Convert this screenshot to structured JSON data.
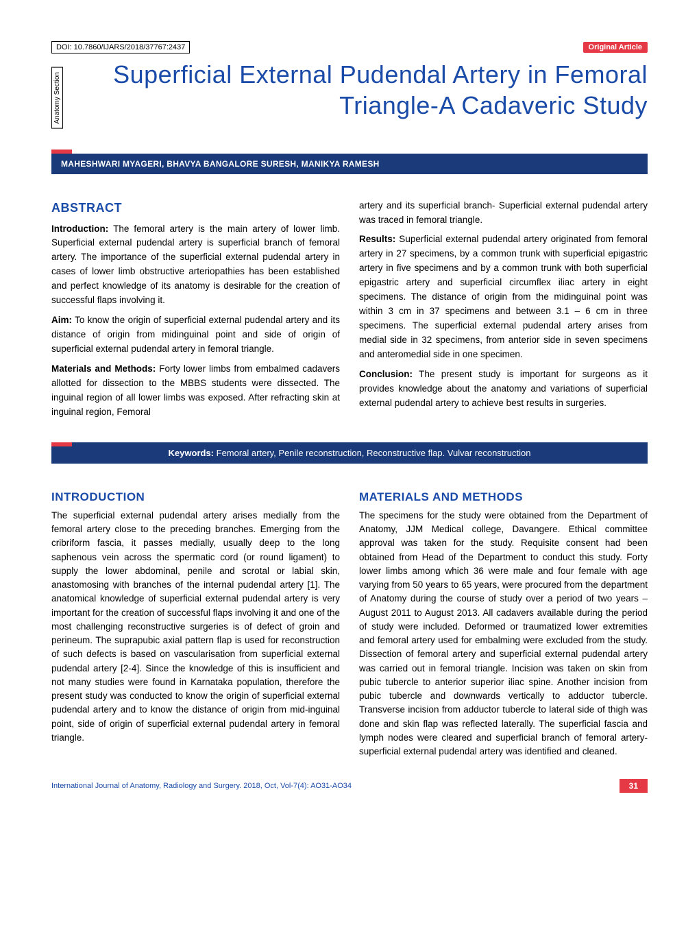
{
  "doi": "DOI: 10.7860/IJARS/2018/37767:2437",
  "badge": "Original Article",
  "section_tab": "Anatomy Section",
  "title": "Superficial External Pudendal Artery in Femoral Triangle-A Cadaveric Study",
  "authors": "MAHESHWARI MYAGERI, BHAVYA BANGALORE SURESH, MANIKYA RAMESH",
  "abstract_heading": "ABSTRACT",
  "abstract": {
    "left": {
      "intro_label": "Introduction:",
      "intro": " The femoral artery is the main artery of lower limb. Superficial external pudendal artery is superficial branch of femoral artery. The importance of the superficial external pudendal artery in cases of lower limb obstructive arteriopathies has been established and perfect knowledge of its anatomy is desirable for the creation of successful flaps involving it.",
      "aim_label": "Aim:",
      "aim": " To know the origin of superficial external pudendal artery and its distance of origin from midinguinal point and side of origin of superficial external pudendal artery in femoral triangle.",
      "methods_label": "Materials and Methods:",
      "methods": " Forty lower limbs from embalmed cadavers allotted for dissection to the MBBS students were dissected. The inguinal region of all lower limbs was exposed. After refracting skin at inguinal region, Femoral"
    },
    "right": {
      "cont": "artery and its superficial branch- Superficial external pudendal artery was traced in femoral triangle.",
      "results_label": "Results:",
      "results": " Superficial external pudendal artery originated from femoral artery in 27 specimens, by a common trunk with superficial epigastric artery in five specimens and by a common trunk with both superficial epigastric artery and superficial circumflex iliac artery in eight specimens. The distance of origin from the midinguinal point was within 3 cm in 37 specimens and between 3.1 – 6 cm in three specimens. The superficial external pudendal artery arises from medial side in 32 specimens, from anterior side in seven specimens and anteromedial side in one specimen.",
      "concl_label": "Conclusion:",
      "concl": " The present study is important for surgeons as it provides knowledge about the anatomy and variations of superficial external pudendal artery to achieve best results in surgeries."
    }
  },
  "keywords_label": "Keywords:",
  "keywords": " Femoral artery, Penile reconstruction, Reconstructive flap. Vulvar reconstruction",
  "intro_heading": "INTRODUCTION",
  "intro_body": "The superficial external pudendal artery arises medially from the femoral artery close to the preceding branches. Emerging from the cribriform fascia, it passes medially, usually deep to the long saphenous vein across the spermatic cord (or round ligament) to supply the lower abdominal, penile and scrotal or labial skin, anastomosing with branches of the internal pudendal artery [1]. The anatomical knowledge of superficial external pudendal artery is very important for the creation of successful flaps involving it and one of the most challenging reconstructive surgeries is of defect of groin and perineum. The suprapubic axial pattern flap is used for reconstruction of such defects is based on vascularisation from superficial external pudendal artery [2-4].  Since the knowledge of this is insufficient and not many studies were found in Karnataka population, therefore the present study was conducted to know the origin of superficial external pudendal artery and to know the distance of origin from mid-inguinal point, side of origin of superficial external pudendal artery in femoral triangle.",
  "mm_heading": "MATERIALS AND METHODS",
  "mm_body": "The specimens for the study were obtained from the Department of Anatomy, JJM Medical college, Davangere. Ethical committee approval was taken for the study. Requisite consent had been obtained from Head of the Department to conduct this study. Forty lower limbs among which 36 were male and four female with age varying from 50 years to 65 years, were procured from the department of Anatomy during the course of study over a period of two years – August 2011 to August 2013. All cadavers available during the period of study were included. Deformed or traumatized lower extremities and femoral artery used for embalming were excluded from the study. Dissection of femoral artery and superficial external pudendal artery was carried out in femoral triangle. Incision was taken on skin from pubic tubercle to anterior superior iliac spine. Another incision from pubic tubercle and downwards vertically to adductor tubercle. Transverse incision from adductor tubercle to lateral side of thigh was done and skin flap was reflected laterally. The superficial fascia and lymph nodes were cleared and superficial branch of femoral artery-superficial external pudendal artery was identified and cleaned.",
  "footer": "International Journal of Anatomy, Radiology and Surgery. 2018, Oct, Vol-7(4): AO31-AO34",
  "page_num": "31",
  "colors": {
    "accent_blue": "#1a4ba8",
    "bar_blue": "#1a3a7a",
    "accent_red": "#e63946"
  }
}
